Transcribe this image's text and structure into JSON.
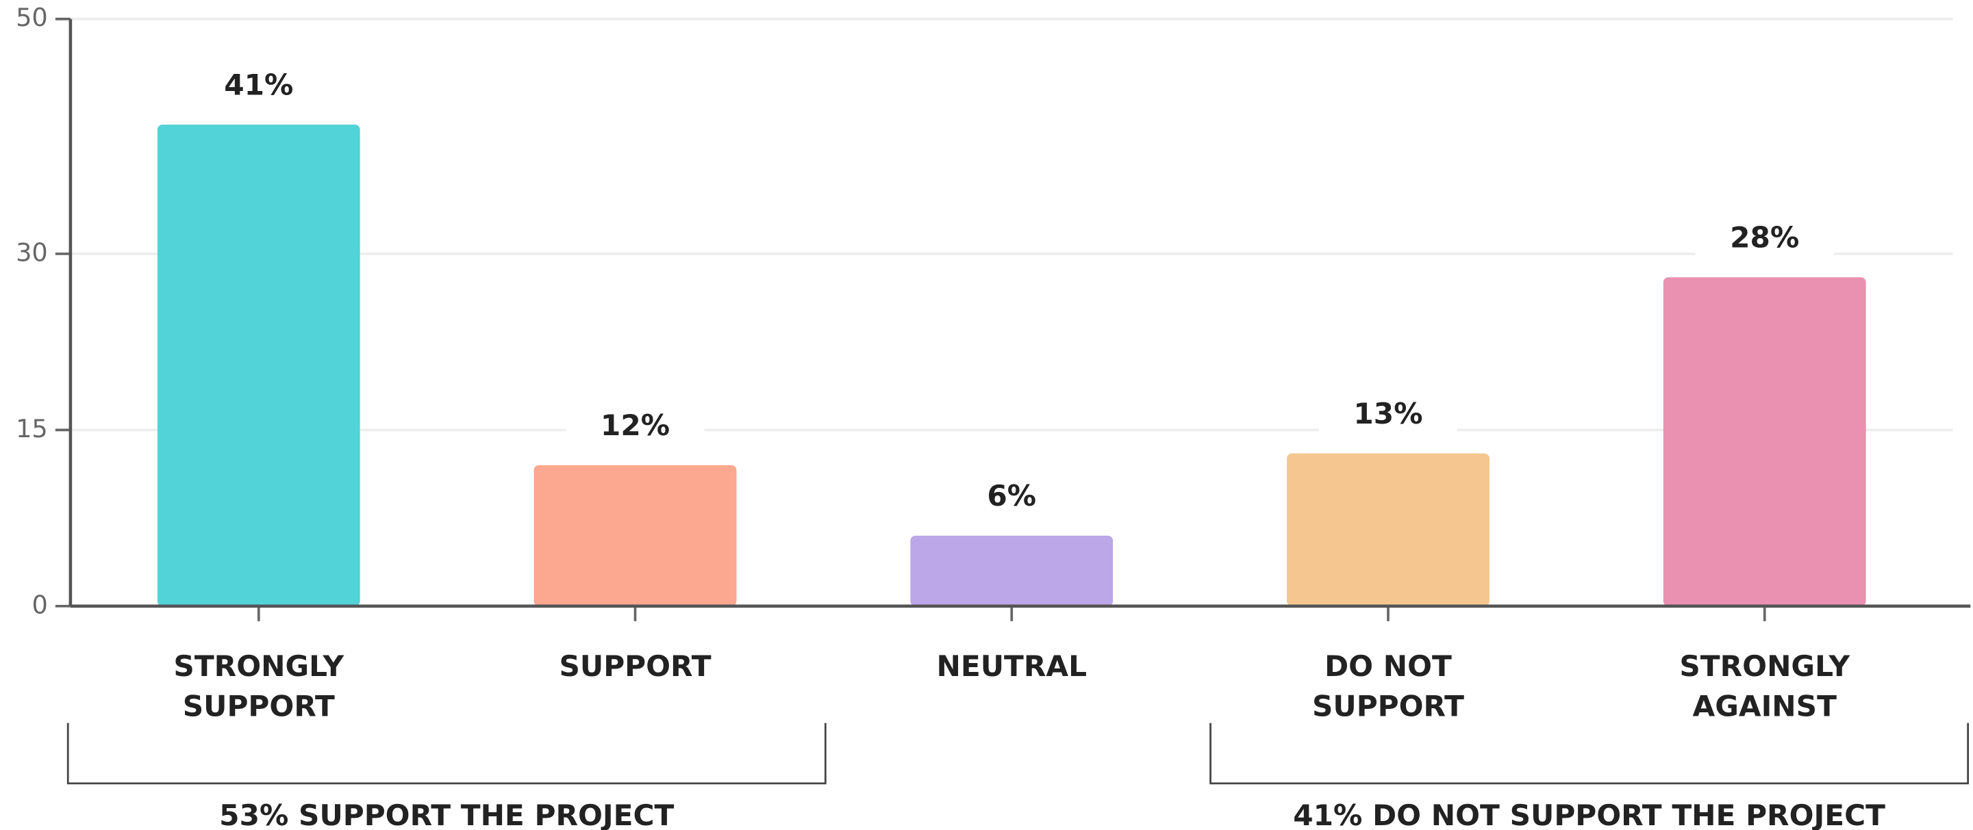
{
  "chart_data": {
    "type": "bar",
    "categories": [
      [
        "STRONGLY",
        "SUPPORT"
      ],
      [
        "SUPPORT"
      ],
      [
        "NEUTRAL"
      ],
      [
        "DO NOT",
        "SUPPORT"
      ],
      [
        "STRONGLY",
        "AGAINST"
      ]
    ],
    "values": [
      41,
      12,
      6,
      13,
      28
    ],
    "value_labels": [
      "41%",
      "12%",
      "6%",
      "13%",
      "28%"
    ],
    "colors": [
      "#52d3d8",
      "#fca78f",
      "#bca7e8",
      "#f5c68f",
      "#ea90b0"
    ],
    "ylim": [
      0,
      50
    ],
    "yticks": [
      0,
      15,
      30,
      50
    ],
    "grid": true,
    "annotations": [
      "53% SUPPORT THE PROJECT",
      "41% DO NOT SUPPORT THE PROJECT"
    ]
  }
}
